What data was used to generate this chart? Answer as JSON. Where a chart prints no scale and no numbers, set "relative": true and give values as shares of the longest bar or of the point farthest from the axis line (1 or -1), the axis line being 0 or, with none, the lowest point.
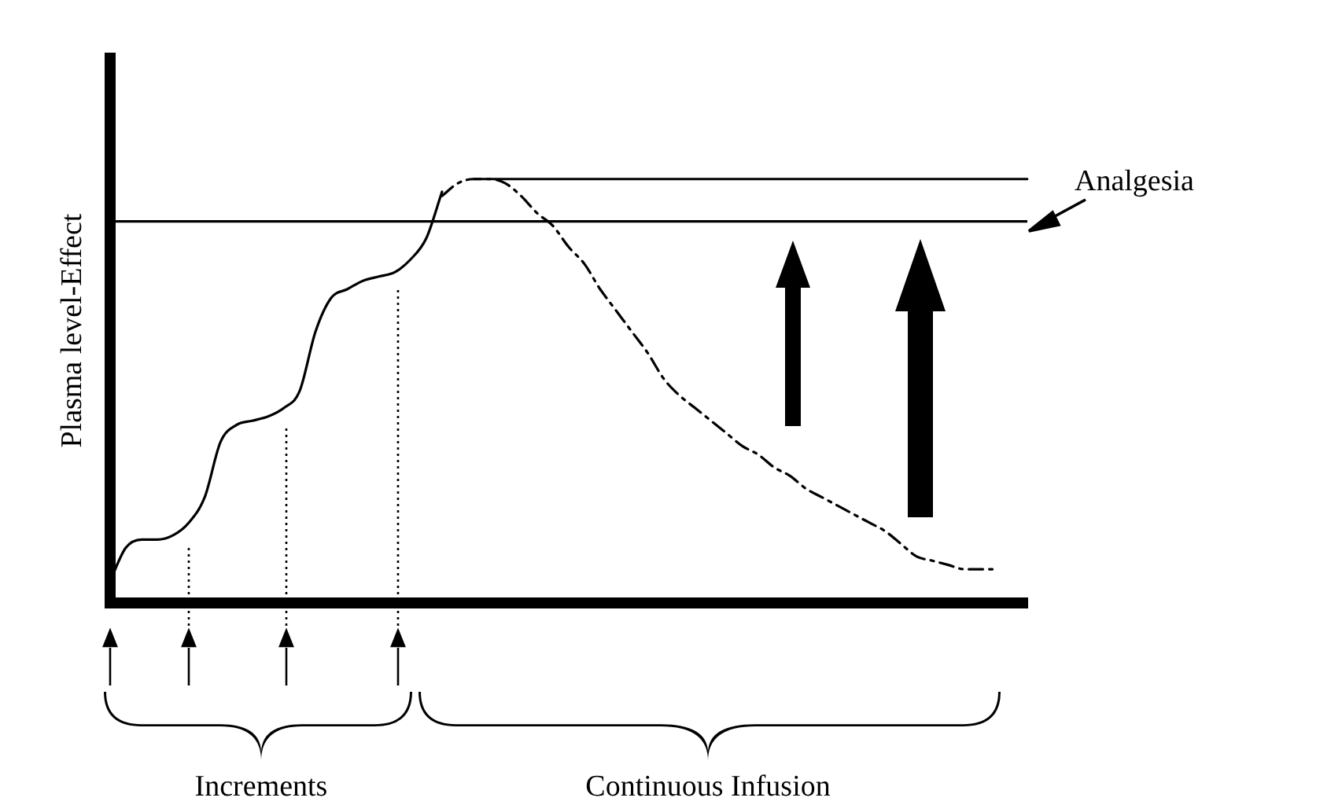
{
  "chart_data": {
    "type": "line",
    "relative": true,
    "ylabel": "Plasma level-Effect",
    "legend": false,
    "grid": false,
    "marker": "none",
    "categories": [
      null,
      null,
      null,
      null,
      null,
      null,
      null,
      null,
      null,
      null,
      null,
      null,
      null,
      null,
      null,
      null,
      null,
      null,
      null,
      null,
      null,
      null,
      null,
      null,
      null,
      null,
      null,
      null,
      null,
      null,
      null,
      null,
      null,
      null,
      null,
      null,
      null,
      null,
      null,
      null,
      null,
      null,
      null,
      null,
      null,
      null,
      null,
      null,
      null,
      null,
      null,
      null,
      null,
      null,
      null,
      null,
      null,
      null,
      null
    ],
    "series": [
      {
        "color": "#000000",
        "line_style": "solid",
        "values": [
          0.05,
          0.13,
          0.15,
          0.15,
          0.16,
          0.19,
          0.25,
          0.38,
          0.42,
          0.43,
          0.44,
          0.46,
          0.5,
          0.64,
          0.72,
          0.74,
          0.76,
          0.77,
          0.78,
          0.81,
          0.86,
          0.97,
          null,
          null,
          null,
          null,
          null,
          null,
          null,
          null,
          null,
          null,
          null,
          null,
          null,
          null,
          null,
          null,
          null,
          null,
          null,
          null,
          null,
          null,
          null,
          null,
          null,
          null,
          null,
          null,
          null,
          null,
          null,
          null,
          null,
          null,
          null,
          null,
          null
        ]
      },
      {
        "color": "#000000",
        "line_style": "dashed",
        "values": [
          null,
          null,
          null,
          null,
          null,
          null,
          null,
          null,
          null,
          null,
          null,
          null,
          null,
          null,
          null,
          null,
          null,
          null,
          null,
          null,
          null,
          0.96,
          0.99,
          1.0,
          1.0,
          0.99,
          0.96,
          0.92,
          0.89,
          0.84,
          0.8,
          0.74,
          0.69,
          0.64,
          0.59,
          0.53,
          0.49,
          0.46,
          0.43,
          0.4,
          0.37,
          0.35,
          0.32,
          0.3,
          0.27,
          0.25,
          0.23,
          0.21,
          0.19,
          0.17,
          0.14,
          0.11,
          0.1,
          0.09,
          0.08,
          0.08,
          0.08,
          null,
          null
        ]
      },
      {
        "color": "#000000",
        "line_style": "solid",
        "values": [
          null,
          null,
          null,
          null,
          null,
          null,
          null,
          null,
          null,
          null,
          null,
          null,
          null,
          null,
          null,
          null,
          null,
          null,
          null,
          null,
          null,
          null,
          null,
          1,
          1,
          1,
          1,
          1,
          1,
          1,
          1,
          1,
          1,
          1,
          1,
          1,
          1,
          1,
          1,
          1,
          1,
          1,
          1,
          1,
          1,
          1,
          1,
          1,
          1,
          1,
          1,
          1,
          1,
          1,
          1,
          1,
          1,
          1,
          1
        ]
      }
    ],
    "ref_lines": [
      {
        "axis": "y",
        "value": 0.9,
        "label": "Analgesia",
        "color": "#000000"
      }
    ],
    "annotations": [
      "Increments",
      "Continuous Infusion"
    ]
  }
}
